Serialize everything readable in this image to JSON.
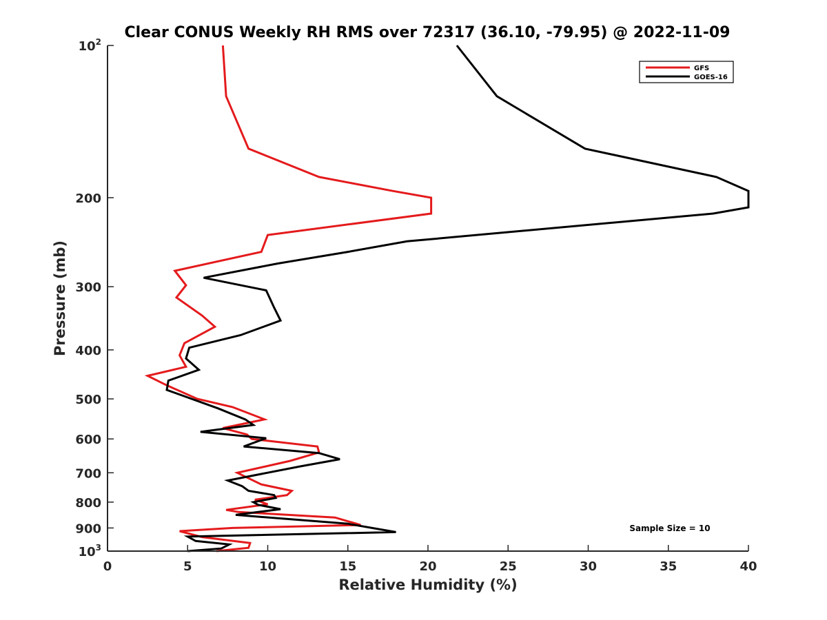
{
  "chart_data": {
    "type": "line",
    "title": "Clear CONUS Weekly RH RMS over 72317 (36.10, -79.95) @ 2022-11-09",
    "xlabel": "Relative Humidity (%)",
    "ylabel": "Pressure (mb)",
    "xlim": [
      0,
      40
    ],
    "ylim": [
      100,
      1000
    ],
    "y_scale": "log",
    "y_reversed": true,
    "x_ticks": [
      "0",
      "5",
      "10",
      "15",
      "20",
      "25",
      "30",
      "35",
      "40"
    ],
    "y_ticks": [
      {
        "value": 100,
        "base": "10",
        "exp": "2"
      },
      {
        "value": 200,
        "label": "200"
      },
      {
        "value": 300,
        "label": "300"
      },
      {
        "value": 400,
        "label": "400"
      },
      {
        "value": 500,
        "label": "500"
      },
      {
        "value": 600,
        "label": "600"
      },
      {
        "value": 700,
        "label": "700"
      },
      {
        "value": 800,
        "label": "800"
      },
      {
        "value": 900,
        "label": "900"
      },
      {
        "value": 1000,
        "base": "10",
        "exp": "3"
      }
    ],
    "grid": false,
    "legend_position": "top-right",
    "annotation": "Sample Size = 10",
    "series": [
      {
        "name": "GFS",
        "color": "#e41a1c",
        "points": [
          [
            7.2,
            100
          ],
          [
            7.4,
            126
          ],
          [
            8.8,
            160
          ],
          [
            13.2,
            182
          ],
          [
            17.8,
            194
          ],
          [
            20.2,
            200
          ],
          [
            20.2,
            215
          ],
          [
            10.0,
            237
          ],
          [
            9.6,
            256
          ],
          [
            4.2,
            279
          ],
          [
            4.9,
            298
          ],
          [
            4.3,
            315
          ],
          [
            5.9,
            342
          ],
          [
            6.7,
            360
          ],
          [
            4.8,
            388
          ],
          [
            4.5,
            410
          ],
          [
            4.9,
            432
          ],
          [
            2.5,
            450
          ],
          [
            3.7,
            470
          ],
          [
            5.6,
            500
          ],
          [
            7.8,
            519
          ],
          [
            9.8,
            549
          ],
          [
            7.2,
            571
          ],
          [
            8.7,
            588
          ],
          [
            9.0,
            600
          ],
          [
            13.1,
            621
          ],
          [
            13.2,
            638
          ],
          [
            11.4,
            663
          ],
          [
            8.1,
            700
          ],
          [
            9.6,
            738
          ],
          [
            11.5,
            760
          ],
          [
            11.2,
            775
          ],
          [
            9.2,
            791
          ],
          [
            10.0,
            808
          ],
          [
            7.4,
            829
          ],
          [
            8.2,
            837
          ],
          [
            14.2,
            858
          ],
          [
            15.8,
            888
          ],
          [
            7.8,
            900
          ],
          [
            4.5,
            913
          ],
          [
            5.9,
            938
          ],
          [
            8.9,
            964
          ],
          [
            8.8,
            985
          ],
          [
            6.8,
            1000
          ]
        ]
      },
      {
        "name": "GOES-16",
        "color": "#000000",
        "points": [
          [
            21.8,
            100
          ],
          [
            24.3,
            126
          ],
          [
            29.8,
            160
          ],
          [
            38.0,
            182
          ],
          [
            40.0,
            194
          ],
          [
            40.0,
            209
          ],
          [
            37.8,
            215
          ],
          [
            18.7,
            244
          ],
          [
            15.0,
            256
          ],
          [
            10.6,
            270
          ],
          [
            6.0,
            288
          ],
          [
            9.9,
            305
          ],
          [
            10.4,
            330
          ],
          [
            10.8,
            350
          ],
          [
            8.3,
            374
          ],
          [
            5.1,
            396
          ],
          [
            4.9,
            416
          ],
          [
            5.7,
            438
          ],
          [
            3.8,
            460
          ],
          [
            3.7,
            480
          ],
          [
            6.9,
            522
          ],
          [
            8.6,
            549
          ],
          [
            9.1,
            563
          ],
          [
            5.8,
            581
          ],
          [
            9.9,
            598
          ],
          [
            8.5,
            621
          ],
          [
            13.2,
            640
          ],
          [
            14.5,
            658
          ],
          [
            12.0,
            680
          ],
          [
            7.5,
            725
          ],
          [
            8.4,
            744
          ],
          [
            8.8,
            760
          ],
          [
            10.4,
            775
          ],
          [
            10.5,
            785
          ],
          [
            9.1,
            800
          ],
          [
            9.4,
            810
          ],
          [
            10.8,
            826
          ],
          [
            8.0,
            848
          ],
          [
            15.0,
            883
          ],
          [
            18.0,
            917
          ],
          [
            5.0,
            936
          ],
          [
            5.5,
            955
          ],
          [
            7.6,
            970
          ],
          [
            7.1,
            988
          ],
          [
            5.0,
            1000
          ]
        ]
      }
    ]
  }
}
